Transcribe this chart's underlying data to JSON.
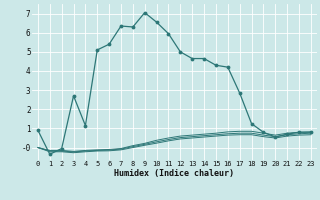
{
  "xlabel": "Humidex (Indice chaleur)",
  "bg_color": "#cce8e8",
  "line_color": "#2d7777",
  "grid_color": "#ffffff",
  "xlim": [
    -0.5,
    23.5
  ],
  "ylim": [
    -0.65,
    7.5
  ],
  "xticks": [
    0,
    1,
    2,
    3,
    4,
    5,
    6,
    7,
    8,
    9,
    10,
    11,
    12,
    13,
    14,
    15,
    16,
    17,
    18,
    19,
    20,
    21,
    22,
    23
  ],
  "yticks": [
    -0.0,
    1,
    2,
    3,
    4,
    5,
    6,
    7
  ],
  "ytick_labels": [
    "-0",
    "1",
    "2",
    "3",
    "4",
    "5",
    "6",
    "7"
  ],
  "line1_x": [
    0,
    1,
    2,
    3,
    4,
    5,
    6,
    7,
    8,
    9,
    10,
    11,
    12,
    13,
    14,
    15,
    16,
    17,
    18,
    19,
    20,
    21,
    22,
    23
  ],
  "line1_y": [
    0.9,
    -0.35,
    -0.05,
    2.7,
    1.15,
    5.1,
    5.4,
    6.35,
    6.3,
    7.05,
    6.55,
    5.95,
    5.0,
    4.65,
    4.65,
    4.3,
    4.2,
    2.85,
    1.25,
    0.8,
    0.55,
    0.7,
    0.8,
    0.8
  ],
  "line2_x": [
    0,
    1,
    2,
    3,
    4,
    5,
    6,
    7,
    8,
    9,
    10,
    11,
    12,
    13,
    14,
    15,
    16,
    17,
    18,
    19,
    20,
    21,
    22,
    23
  ],
  "line2_y": [
    0.0,
    -0.15,
    -0.15,
    -0.2,
    -0.15,
    -0.12,
    -0.1,
    -0.05,
    0.1,
    0.22,
    0.38,
    0.5,
    0.6,
    0.65,
    0.7,
    0.75,
    0.82,
    0.85,
    0.85,
    0.75,
    0.65,
    0.75,
    0.8,
    0.82
  ],
  "line3_x": [
    0,
    1,
    2,
    3,
    4,
    5,
    6,
    7,
    8,
    9,
    10,
    11,
    12,
    13,
    14,
    15,
    16,
    17,
    18,
    19,
    20,
    21,
    22,
    23
  ],
  "line3_y": [
    0.0,
    -0.18,
    -0.18,
    -0.23,
    -0.18,
    -0.15,
    -0.13,
    -0.08,
    0.05,
    0.17,
    0.3,
    0.42,
    0.52,
    0.57,
    0.62,
    0.67,
    0.72,
    0.75,
    0.75,
    0.65,
    0.57,
    0.67,
    0.72,
    0.75
  ],
  "line4_x": [
    0,
    1,
    2,
    3,
    4,
    5,
    6,
    7,
    8,
    9,
    10,
    11,
    12,
    13,
    14,
    15,
    16,
    17,
    18,
    19,
    20,
    21,
    22,
    23
  ],
  "line4_y": [
    0.0,
    -0.22,
    -0.22,
    -0.27,
    -0.22,
    -0.18,
    -0.17,
    -0.12,
    0.0,
    0.12,
    0.23,
    0.35,
    0.45,
    0.5,
    0.55,
    0.6,
    0.65,
    0.67,
    0.67,
    0.57,
    0.5,
    0.6,
    0.65,
    0.67
  ]
}
